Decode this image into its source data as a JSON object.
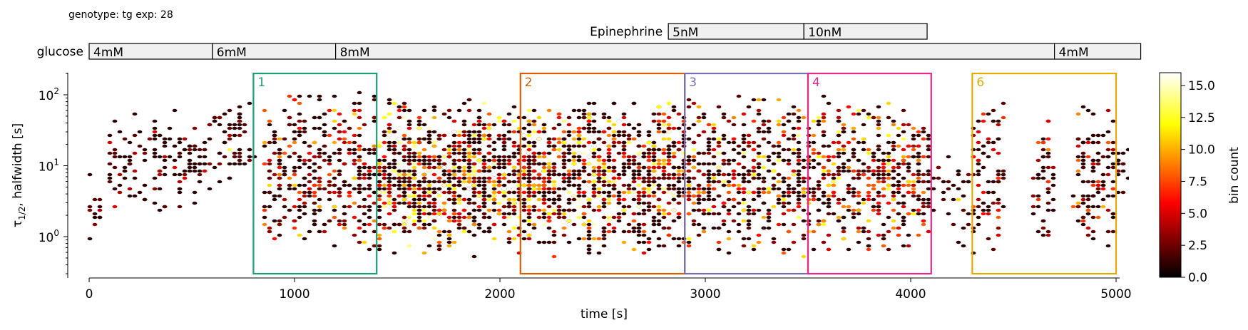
{
  "header": "genotype: tg  exp: 28",
  "chart_data": {
    "type": "heatmap",
    "subtype": "hexbin",
    "xlabel": "time [s]",
    "ylabel_main": "τ",
    "ylabel_sub": "1/2",
    "ylabel_rest": ", halfwidth [s]",
    "yscale": "log",
    "xlim": [
      0,
      5100
    ],
    "ylim": [
      0.25,
      200
    ],
    "x_ticks": [
      0,
      1000,
      2000,
      3000,
      4000,
      5000
    ],
    "x_tick_labels": [
      "0",
      "1000",
      "2000",
      "3000",
      "4000",
      "5000"
    ],
    "y_ticks": [
      1,
      10,
      100
    ],
    "y_tick_labels": [
      "10",
      "10",
      "10"
    ],
    "y_tick_exponents": [
      "0",
      "1",
      "2"
    ],
    "colorbar": {
      "label": "bin count",
      "min": 0,
      "max": 16,
      "ticks": [
        0,
        2.5,
        5,
        7.5,
        10,
        12.5,
        15
      ],
      "tick_labels": [
        "0.0",
        "2.5",
        "5.0",
        "7.5",
        "10.0",
        "12.5",
        "15.0"
      ],
      "colormap": "hot"
    },
    "stimulus_tracks": [
      {
        "name": "glucose",
        "segments": [
          {
            "label": "4mM",
            "start": 0,
            "end": 600
          },
          {
            "label": "6mM",
            "start": 600,
            "end": 1200
          },
          {
            "label": "8mM",
            "start": 1200,
            "end": 4700
          },
          {
            "label": "4mM",
            "start": 4700,
            "end": 5120
          }
        ]
      },
      {
        "name": "Epinephrine",
        "segments": [
          {
            "label": "5nM",
            "start": 2820,
            "end": 3480
          },
          {
            "label": "10nM",
            "start": 3480,
            "end": 4080
          }
        ]
      }
    ],
    "regions": [
      {
        "label": "1",
        "x0": 800,
        "x1": 1400,
        "color": "#1b9e77"
      },
      {
        "label": "2",
        "x0": 2100,
        "x1": 2900,
        "color": "#d95f02"
      },
      {
        "label": "3",
        "x0": 2900,
        "x1": 3500,
        "color": "#7570b3"
      },
      {
        "label": "4",
        "x0": 3500,
        "x1": 4100,
        "color": "#e7298a"
      },
      {
        "label": "6",
        "x0": 4300,
        "x1": 5000,
        "color": "#e6ab02"
      }
    ],
    "region_y_range": [
      0.3,
      200
    ],
    "density_clusters": [
      {
        "x": [
          0,
          60
        ],
        "y": [
          0.5,
          20
        ],
        "weight": 0.4
      },
      {
        "x": [
          100,
          600
        ],
        "y": [
          2,
          60
        ],
        "weight": 0.5
      },
      {
        "x": [
          600,
          800
        ],
        "y": [
          5,
          100
        ],
        "weight": 0.5
      },
      {
        "x": [
          850,
          1400
        ],
        "y": [
          0.5,
          150
        ],
        "weight": 1.2
      },
      {
        "x": [
          1400,
          2100
        ],
        "y": [
          0.5,
          100
        ],
        "weight": 3.0
      },
      {
        "x": [
          2100,
          2900
        ],
        "y": [
          0.5,
          100
        ],
        "weight": 2.6
      },
      {
        "x": [
          2900,
          3500
        ],
        "y": [
          0.5,
          120
        ],
        "weight": 1.5
      },
      {
        "x": [
          3500,
          4100
        ],
        "y": [
          0.5,
          100
        ],
        "weight": 1.4
      },
      {
        "x": [
          4100,
          4300
        ],
        "y": [
          0.5,
          30
        ],
        "weight": 0.3
      },
      {
        "x": [
          4300,
          4450
        ],
        "y": [
          0.5,
          110
        ],
        "weight": 1.0
      },
      {
        "x": [
          4600,
          4700
        ],
        "y": [
          0.5,
          110
        ],
        "weight": 0.9
      },
      {
        "x": [
          4800,
          5000
        ],
        "y": [
          0.5,
          110
        ],
        "weight": 1.1
      },
      {
        "x": [
          5000,
          5100
        ],
        "y": [
          3,
          20
        ],
        "weight": 0.3
      }
    ]
  }
}
